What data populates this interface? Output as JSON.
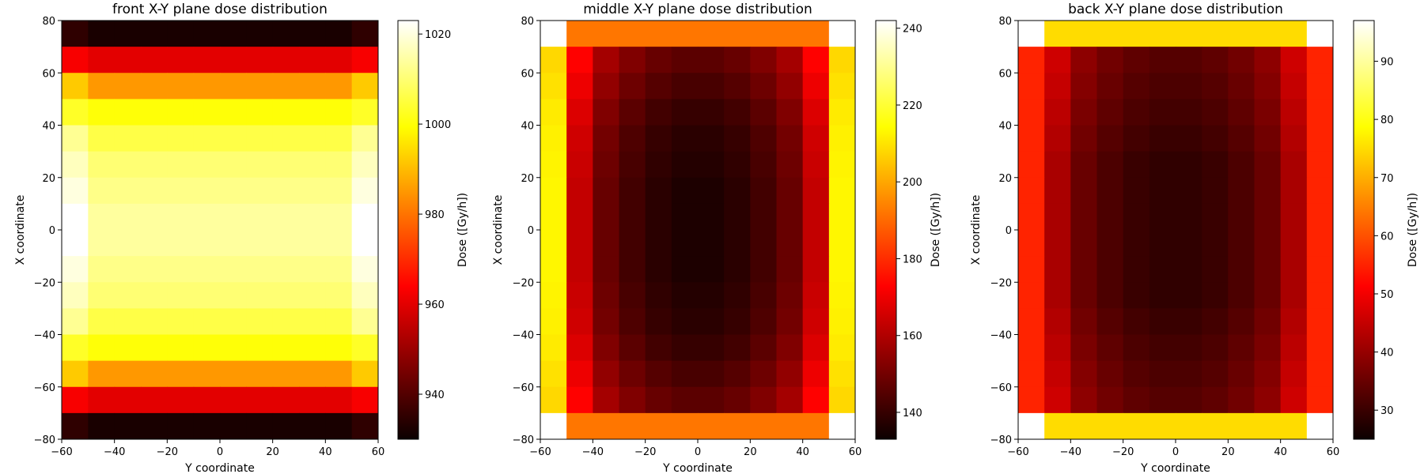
{
  "colormap": {
    "name": "hot",
    "stops": [
      "#0b0000",
      "#ff0000",
      "#ffff00",
      "#ffffff"
    ]
  },
  "chart_data": [
    {
      "type": "heatmap",
      "title": "front X-Y plane dose distribution",
      "xlabel": "Y coordinate",
      "ylabel": "X coordinate",
      "colorbar_label": "Dose ([Gy/h])",
      "xlim": [
        -60,
        60
      ],
      "ylim": [
        -80,
        80
      ],
      "x_ticks": [
        -60,
        -40,
        -20,
        0,
        20,
        40,
        60
      ],
      "y_ticks": [
        -80,
        -60,
        -40,
        -20,
        0,
        20,
        40,
        60,
        80
      ],
      "x_edges": [
        -60,
        -50,
        -40,
        -30,
        -20,
        -10,
        0,
        10,
        20,
        30,
        40,
        50,
        60
      ],
      "y_edges": [
        80,
        70,
        60,
        50,
        40,
        30,
        20,
        10,
        0,
        -10,
        -20,
        -30,
        -40,
        -50,
        -60,
        -70,
        -80
      ],
      "clim": [
        930,
        1023
      ],
      "colorbar_ticks": [
        940,
        960,
        980,
        1000,
        1020
      ],
      "col_offsets": [
        2,
        0,
        0,
        0,
        0,
        0,
        0,
        0,
        0,
        0,
        0,
        2
      ],
      "row_values": [
        932,
        960,
        985,
        1000,
        1006,
        1010,
        1012,
        1014,
        1014,
        1012,
        1010,
        1006,
        1000,
        985,
        960,
        932
      ],
      "edge_row_values": [
        935,
        963,
        992,
        1003,
        1013,
        1017,
        1020,
        1023,
        1023,
        1020,
        1017,
        1013,
        1003,
        992,
        963,
        935
      ]
    },
    {
      "type": "heatmap",
      "title": "middle X-Y plane dose distribution",
      "xlabel": "Y coordinate",
      "ylabel": "X coordinate",
      "colorbar_label": "Dose ([Gy/h])",
      "xlim": [
        -60,
        60
      ],
      "ylim": [
        -80,
        80
      ],
      "x_ticks": [
        -60,
        -40,
        -20,
        0,
        20,
        40,
        60
      ],
      "y_ticks": [
        -80,
        -60,
        -40,
        -20,
        0,
        20,
        40,
        60,
        80
      ],
      "x_edges": [
        -60,
        -50,
        -40,
        -30,
        -20,
        -10,
        0,
        10,
        20,
        30,
        40,
        50,
        60
      ],
      "y_edges": [
        80,
        70,
        60,
        50,
        40,
        30,
        20,
        10,
        0,
        -10,
        -20,
        -30,
        -40,
        -50,
        -60,
        -70,
        -80
      ],
      "clim": [
        133,
        242
      ],
      "colorbar_ticks": [
        140,
        160,
        180,
        200,
        220,
        240
      ],
      "row_values_top": [
        242,
        212,
        198,
        192,
        192,
        192,
        192,
        192,
        192,
        192,
        192,
        192,
        192,
        198,
        212,
        242
      ],
      "col_values_inner": [
        212,
        165,
        150,
        144,
        140,
        138,
        138,
        140,
        144,
        150,
        165,
        212
      ],
      "row_offsets": [
        0,
        8,
        5,
        2,
        0,
        -1,
        -2,
        -2,
        -2,
        -2,
        -1,
        0,
        2,
        5,
        8,
        0
      ]
    },
    {
      "type": "heatmap",
      "title": "back X-Y plane dose distribution",
      "xlabel": "Y coordinate",
      "ylabel": "X coordinate",
      "colorbar_label": "Dose ([Gy/h])",
      "xlim": [
        -60,
        60
      ],
      "ylim": [
        -80,
        80
      ],
      "x_ticks": [
        -60,
        -40,
        -20,
        0,
        20,
        40,
        60
      ],
      "y_ticks": [
        -80,
        -60,
        -40,
        -20,
        0,
        20,
        40,
        60,
        80
      ],
      "x_edges": [
        -60,
        -50,
        -40,
        -30,
        -20,
        -10,
        0,
        10,
        20,
        30,
        40,
        50,
        60
      ],
      "y_edges": [
        80,
        70,
        60,
        50,
        40,
        30,
        20,
        10,
        0,
        -10,
        -20,
        -30,
        -40,
        -50,
        -60,
        -70,
        -80
      ],
      "clim": [
        25,
        97
      ],
      "colorbar_ticks": [
        30,
        40,
        50,
        60,
        70,
        80,
        90
      ],
      "row_values_top": [
        97,
        83,
        77,
        75,
        75,
        75,
        75,
        75,
        75,
        75,
        75,
        75,
        75,
        77,
        83,
        97
      ],
      "col_values_inner": [
        70,
        42,
        35,
        32,
        30,
        29,
        29,
        30,
        32,
        35,
        42,
        70
      ],
      "inner_override_first_last_col": [
        64,
        55,
        55,
        55,
        55,
        55,
        55,
        55,
        55,
        55,
        55,
        55,
        55,
        55,
        55,
        64
      ],
      "row_offsets": [
        0,
        4,
        3,
        2,
        1,
        0,
        0,
        0,
        0,
        0,
        0,
        1,
        2,
        3,
        4,
        0
      ]
    }
  ]
}
